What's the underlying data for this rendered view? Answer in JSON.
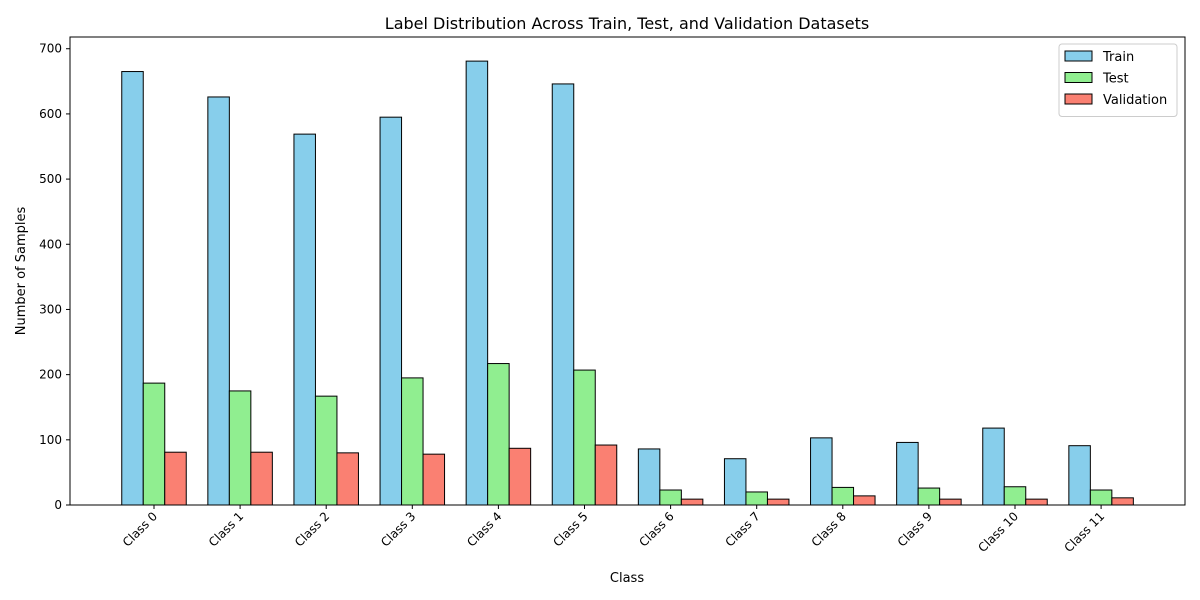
{
  "chart_data": {
    "type": "bar",
    "title": "Label Distribution Across Train, Test, and Validation Datasets",
    "xlabel": "Class",
    "ylabel": "Number of Samples",
    "ylim": [
      0,
      718
    ],
    "yticks": [
      0,
      100,
      200,
      300,
      400,
      500,
      600,
      700
    ],
    "categories": [
      "Class 0",
      "Class 1",
      "Class 2",
      "Class 3",
      "Class 4",
      "Class 5",
      "Class 6",
      "Class 7",
      "Class 8",
      "Class 9",
      "Class 10",
      "Class 11"
    ],
    "series": [
      {
        "name": "Train",
        "color": "#87ceeb",
        "values": [
          665,
          626,
          569,
          595,
          681,
          646,
          86,
          71,
          103,
          96,
          118,
          91
        ]
      },
      {
        "name": "Test",
        "color": "#90ee90",
        "values": [
          187,
          175,
          167,
          195,
          217,
          207,
          23,
          20,
          27,
          26,
          28,
          23
        ]
      },
      {
        "name": "Validation",
        "color": "#fa8072",
        "values": [
          81,
          81,
          80,
          78,
          87,
          92,
          9,
          9,
          14,
          9,
          9,
          11
        ]
      }
    ],
    "legend_position": "top-right",
    "grid": false
  }
}
